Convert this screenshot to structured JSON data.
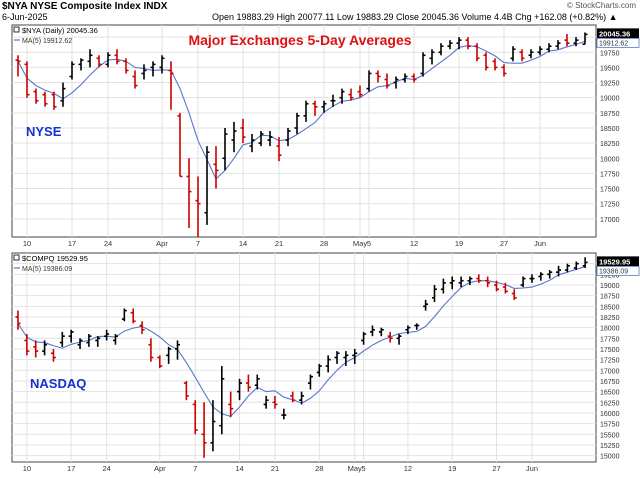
{
  "header": {
    "symbol_line": "$NYA NYSE Composite Index INDX",
    "date": "6-Jun-2025",
    "ohlc_line": "Open 19883.29  High 20077.11  Low 19883.29  Close 20045.36  Volume 4.4B  Chg +162.08 (+0.82%) ▲",
    "watermark": "© StockCharts.com"
  },
  "chart_data": [
    {
      "type": "ohlc",
      "id": "nyse",
      "title": "Major Exchanges 5-Day Averages",
      "panel_label": "NYSE",
      "legend": {
        "price": "$NYA (Daily) 20045.36",
        "ma": "MA(5) 19912.62"
      },
      "last_price_label": "20045.36",
      "last_ma_label": "19912.62",
      "ylim": [
        16700,
        20200
      ],
      "yticks": [
        17000,
        17250,
        17500,
        17750,
        18000,
        18250,
        18500,
        18750,
        19000,
        19250,
        19500,
        19750,
        20000
      ],
      "x_labels": [
        {
          "i": 1,
          "t": "10"
        },
        {
          "i": 6,
          "t": "17"
        },
        {
          "i": 10,
          "t": "24"
        },
        {
          "i": 16,
          "t": "Apr"
        },
        {
          "i": 20,
          "t": "7"
        },
        {
          "i": 25,
          "t": "14"
        },
        {
          "i": 29,
          "t": "21"
        },
        {
          "i": 34,
          "t": "28"
        },
        {
          "i": 38,
          "t": "May"
        },
        {
          "i": 39,
          "t": "5"
        },
        {
          "i": 44,
          "t": "12"
        },
        {
          "i": 49,
          "t": "19"
        },
        {
          "i": 54,
          "t": "27"
        },
        {
          "i": 58,
          "t": "Jun"
        }
      ],
      "bars": [
        {
          "o": 19620,
          "h": 19700,
          "l": 19350,
          "c": 19600
        },
        {
          "o": 19550,
          "h": 19600,
          "l": 19000,
          "c": 19050
        },
        {
          "o": 19100,
          "h": 19150,
          "l": 18900,
          "c": 18950
        },
        {
          "o": 19050,
          "h": 19100,
          "l": 18850,
          "c": 18900
        },
        {
          "o": 19050,
          "h": 19100,
          "l": 18800,
          "c": 18850
        },
        {
          "o": 18950,
          "h": 19250,
          "l": 18850,
          "c": 19150
        },
        {
          "o": 19350,
          "h": 19600,
          "l": 19300,
          "c": 19550
        },
        {
          "o": 19550,
          "h": 19650,
          "l": 19450,
          "c": 19620
        },
        {
          "o": 19600,
          "h": 19800,
          "l": 19500,
          "c": 19700
        },
        {
          "o": 19650,
          "h": 19700,
          "l": 19500,
          "c": 19550
        },
        {
          "o": 19550,
          "h": 19750,
          "l": 19500,
          "c": 19700
        },
        {
          "o": 19700,
          "h": 19800,
          "l": 19550,
          "c": 19600
        },
        {
          "o": 19600,
          "h": 19650,
          "l": 19400,
          "c": 19450
        },
        {
          "o": 19350,
          "h": 19450,
          "l": 19150,
          "c": 19200
        },
        {
          "o": 19400,
          "h": 19550,
          "l": 19300,
          "c": 19450
        },
        {
          "o": 19500,
          "h": 19600,
          "l": 19350,
          "c": 19550
        },
        {
          "o": 19500,
          "h": 19700,
          "l": 19400,
          "c": 19650
        },
        {
          "o": 19450,
          "h": 19600,
          "l": 18800,
          "c": 19400
        },
        {
          "o": 18700,
          "h": 18750,
          "l": 17700,
          "c": 17700
        },
        {
          "o": 17700,
          "h": 18000,
          "l": 16850,
          "c": 17450
        },
        {
          "o": 17300,
          "h": 17700,
          "l": 16700,
          "c": 17250
        },
        {
          "o": 17100,
          "h": 18200,
          "l": 16900,
          "c": 18100
        },
        {
          "o": 17900,
          "h": 18200,
          "l": 17500,
          "c": 17800
        },
        {
          "o": 18000,
          "h": 18500,
          "l": 17800,
          "c": 18400
        },
        {
          "o": 18300,
          "h": 18600,
          "l": 18100,
          "c": 18450
        },
        {
          "o": 18500,
          "h": 18650,
          "l": 18250,
          "c": 18350
        },
        {
          "o": 18200,
          "h": 18400,
          "l": 18100,
          "c": 18300
        },
        {
          "o": 18250,
          "h": 18450,
          "l": 18200,
          "c": 18400
        },
        {
          "o": 18300,
          "h": 18450,
          "l": 18200,
          "c": 18350
        },
        {
          "o": 18200,
          "h": 18350,
          "l": 17950,
          "c": 18050
        },
        {
          "o": 18300,
          "h": 18500,
          "l": 18200,
          "c": 18450
        },
        {
          "o": 18500,
          "h": 18750,
          "l": 18400,
          "c": 18700
        },
        {
          "o": 18700,
          "h": 18950,
          "l": 18600,
          "c": 18900
        },
        {
          "o": 18900,
          "h": 18950,
          "l": 18700,
          "c": 18850
        },
        {
          "o": 18850,
          "h": 18950,
          "l": 18750,
          "c": 18900
        },
        {
          "o": 18950,
          "h": 19050,
          "l": 18850,
          "c": 18950
        },
        {
          "o": 19000,
          "h": 19150,
          "l": 18900,
          "c": 19100
        },
        {
          "o": 19050,
          "h": 19150,
          "l": 18950,
          "c": 19000
        },
        {
          "o": 19100,
          "h": 19200,
          "l": 19000,
          "c": 19050
        },
        {
          "o": 19150,
          "h": 19450,
          "l": 19100,
          "c": 19400
        },
        {
          "o": 19400,
          "h": 19450,
          "l": 19250,
          "c": 19350
        },
        {
          "o": 19300,
          "h": 19400,
          "l": 19150,
          "c": 19200
        },
        {
          "o": 19250,
          "h": 19350,
          "l": 19150,
          "c": 19300
        },
        {
          "o": 19300,
          "h": 19400,
          "l": 19250,
          "c": 19350
        },
        {
          "o": 19350,
          "h": 19400,
          "l": 19250,
          "c": 19300
        },
        {
          "o": 19400,
          "h": 19750,
          "l": 19350,
          "c": 19700
        },
        {
          "o": 19650,
          "h": 19800,
          "l": 19550,
          "c": 19750
        },
        {
          "o": 19750,
          "h": 19900,
          "l": 19700,
          "c": 19850
        },
        {
          "o": 19850,
          "h": 19950,
          "l": 19800,
          "c": 19900
        },
        {
          "o": 19900,
          "h": 20000,
          "l": 19800,
          "c": 19950
        },
        {
          "o": 19950,
          "h": 20000,
          "l": 19800,
          "c": 19850
        },
        {
          "o": 19850,
          "h": 19900,
          "l": 19600,
          "c": 19650
        },
        {
          "o": 19700,
          "h": 19750,
          "l": 19450,
          "c": 19500
        },
        {
          "o": 19600,
          "h": 19650,
          "l": 19450,
          "c": 19500
        },
        {
          "o": 19500,
          "h": 19550,
          "l": 19350,
          "c": 19400
        },
        {
          "o": 19650,
          "h": 19850,
          "l": 19600,
          "c": 19800
        },
        {
          "o": 19750,
          "h": 19800,
          "l": 19600,
          "c": 19650
        },
        {
          "o": 19700,
          "h": 19800,
          "l": 19650,
          "c": 19750
        },
        {
          "o": 19750,
          "h": 19850,
          "l": 19700,
          "c": 19800
        },
        {
          "o": 19800,
          "h": 19900,
          "l": 19750,
          "c": 19850
        },
        {
          "o": 19850,
          "h": 19950,
          "l": 19800,
          "c": 19900
        },
        {
          "o": 19950,
          "h": 20050,
          "l": 19850,
          "c": 19900
        },
        {
          "o": 19900,
          "h": 20000,
          "l": 19850,
          "c": 19950
        },
        {
          "o": 19883,
          "h": 20077,
          "l": 19883,
          "c": 20045
        }
      ]
    },
    {
      "type": "ohlc",
      "id": "nasdaq",
      "panel_label": "NASDAQ",
      "legend": {
        "price": "$COMPQ 19529.95",
        "ma": "MA(5) 19386.09"
      },
      "last_price_label": "19529.95",
      "last_ma_label": "19386.09",
      "ylim": [
        14850,
        19750
      ],
      "yticks": [
        15000,
        15250,
        15500,
        15750,
        16000,
        16250,
        16500,
        16750,
        17000,
        17250,
        17500,
        17750,
        18000,
        18250,
        18500,
        18750,
        19000,
        19250,
        19500
      ],
      "x_labels": [
        {
          "i": 1,
          "t": "10"
        },
        {
          "i": 6,
          "t": "17"
        },
        {
          "i": 10,
          "t": "24"
        },
        {
          "i": 16,
          "t": "Apr"
        },
        {
          "i": 20,
          "t": "7"
        },
        {
          "i": 25,
          "t": "14"
        },
        {
          "i": 29,
          "t": "21"
        },
        {
          "i": 34,
          "t": "28"
        },
        {
          "i": 38,
          "t": "May"
        },
        {
          "i": 39,
          "t": "5"
        },
        {
          "i": 44,
          "t": "12"
        },
        {
          "i": 49,
          "t": "19"
        },
        {
          "i": 54,
          "t": "27"
        },
        {
          "i": 58,
          "t": "Jun"
        }
      ],
      "bars": [
        {
          "o": 18250,
          "h": 18400,
          "l": 17950,
          "c": 18100
        },
        {
          "o": 17700,
          "h": 17850,
          "l": 17350,
          "c": 17450
        },
        {
          "o": 17550,
          "h": 17700,
          "l": 17300,
          "c": 17450
        },
        {
          "o": 17450,
          "h": 17700,
          "l": 17350,
          "c": 17600
        },
        {
          "o": 17400,
          "h": 17500,
          "l": 17200,
          "c": 17300
        },
        {
          "o": 17650,
          "h": 17900,
          "l": 17550,
          "c": 17800
        },
        {
          "o": 17800,
          "h": 17950,
          "l": 17650,
          "c": 17900
        },
        {
          "o": 17600,
          "h": 17750,
          "l": 17500,
          "c": 17700
        },
        {
          "o": 17650,
          "h": 17850,
          "l": 17550,
          "c": 17800
        },
        {
          "o": 17700,
          "h": 17800,
          "l": 17550,
          "c": 17750
        },
        {
          "o": 17800,
          "h": 17950,
          "l": 17700,
          "c": 17850
        },
        {
          "o": 17700,
          "h": 17850,
          "l": 17600,
          "c": 17800
        },
        {
          "o": 18200,
          "h": 18450,
          "l": 18150,
          "c": 18400
        },
        {
          "o": 18350,
          "h": 18450,
          "l": 18100,
          "c": 18150
        },
        {
          "o": 18050,
          "h": 18150,
          "l": 17850,
          "c": 17950
        },
        {
          "o": 17600,
          "h": 17750,
          "l": 17200,
          "c": 17300
        },
        {
          "o": 17300,
          "h": 17350,
          "l": 17050,
          "c": 17100
        },
        {
          "o": 17350,
          "h": 17550,
          "l": 17150,
          "c": 17500
        },
        {
          "o": 17500,
          "h": 17700,
          "l": 17250,
          "c": 17600
        },
        {
          "o": 16700,
          "h": 16750,
          "l": 16300,
          "c": 16400
        },
        {
          "o": 16200,
          "h": 16300,
          "l": 15500,
          "c": 15600
        },
        {
          "o": 15500,
          "h": 16250,
          "l": 14950,
          "c": 15300
        },
        {
          "o": 15300,
          "h": 16300,
          "l": 15100,
          "c": 15800
        },
        {
          "o": 15700,
          "h": 17100,
          "l": 15500,
          "c": 16800
        },
        {
          "o": 16200,
          "h": 16500,
          "l": 15900,
          "c": 16100
        },
        {
          "o": 16500,
          "h": 16800,
          "l": 16300,
          "c": 16700
        },
        {
          "o": 16700,
          "h": 16900,
          "l": 16500,
          "c": 16600
        },
        {
          "o": 16650,
          "h": 16900,
          "l": 16550,
          "c": 16800
        },
        {
          "o": 16200,
          "h": 16400,
          "l": 16100,
          "c": 16300
        },
        {
          "o": 16250,
          "h": 16400,
          "l": 16100,
          "c": 16200
        },
        {
          "o": 15950,
          "h": 16100,
          "l": 15850,
          "c": 15950
        },
        {
          "o": 16400,
          "h": 16500,
          "l": 16250,
          "c": 16300
        },
        {
          "o": 16300,
          "h": 16500,
          "l": 16200,
          "c": 16400
        },
        {
          "o": 16700,
          "h": 16900,
          "l": 16550,
          "c": 16850
        },
        {
          "o": 16950,
          "h": 17150,
          "l": 16850,
          "c": 17100
        },
        {
          "o": 17100,
          "h": 17350,
          "l": 16950,
          "c": 17250
        },
        {
          "o": 17300,
          "h": 17450,
          "l": 17150,
          "c": 17400
        },
        {
          "o": 17300,
          "h": 17450,
          "l": 17100,
          "c": 17350
        },
        {
          "o": 17350,
          "h": 17500,
          "l": 17150,
          "c": 17400
        },
        {
          "o": 17700,
          "h": 17900,
          "l": 17600,
          "c": 17850
        },
        {
          "o": 17900,
          "h": 18050,
          "l": 17800,
          "c": 17950
        },
        {
          "o": 17900,
          "h": 18000,
          "l": 17800,
          "c": 17950
        },
        {
          "o": 17800,
          "h": 17900,
          "l": 17650,
          "c": 17750
        },
        {
          "o": 17750,
          "h": 17850,
          "l": 17600,
          "c": 17800
        },
        {
          "o": 17950,
          "h": 18050,
          "l": 17850,
          "c": 18000
        },
        {
          "o": 18050,
          "h": 18100,
          "l": 17950,
          "c": 18050
        },
        {
          "o": 18500,
          "h": 18650,
          "l": 18400,
          "c": 18550
        },
        {
          "o": 18700,
          "h": 19000,
          "l": 18600,
          "c": 18900
        },
        {
          "o": 18900,
          "h": 19150,
          "l": 18800,
          "c": 19050
        },
        {
          "o": 19050,
          "h": 19200,
          "l": 18900,
          "c": 19100
        },
        {
          "o": 19050,
          "h": 19200,
          "l": 18950,
          "c": 19100
        },
        {
          "o": 19100,
          "h": 19200,
          "l": 19000,
          "c": 19150
        },
        {
          "o": 19150,
          "h": 19250,
          "l": 19050,
          "c": 19100
        },
        {
          "o": 19100,
          "h": 19200,
          "l": 18950,
          "c": 19050
        },
        {
          "o": 19000,
          "h": 19100,
          "l": 18850,
          "c": 18900
        },
        {
          "o": 18950,
          "h": 19050,
          "l": 18800,
          "c": 18850
        },
        {
          "o": 18800,
          "h": 18900,
          "l": 18650,
          "c": 18700
        },
        {
          "o": 19000,
          "h": 19200,
          "l": 18950,
          "c": 19150
        },
        {
          "o": 19150,
          "h": 19250,
          "l": 19050,
          "c": 19150
        },
        {
          "o": 19200,
          "h": 19300,
          "l": 19100,
          "c": 19250
        },
        {
          "o": 19250,
          "h": 19350,
          "l": 19150,
          "c": 19300
        },
        {
          "o": 19300,
          "h": 19450,
          "l": 19200,
          "c": 19350
        },
        {
          "o": 19350,
          "h": 19500,
          "l": 19300,
          "c": 19450
        },
        {
          "o": 19400,
          "h": 19550,
          "l": 19350,
          "c": 19500
        },
        {
          "o": 19450,
          "h": 19650,
          "l": 19400,
          "c": 19530
        }
      ]
    }
  ],
  "colors": {
    "up": "#000000",
    "down": "#cc0000",
    "ma": "#5577cc",
    "title": "#dd1111",
    "panel_label": "#1133cc",
    "grid": "#e2e2e2",
    "price_box": "#000000",
    "ma_box": "#5577cc"
  }
}
